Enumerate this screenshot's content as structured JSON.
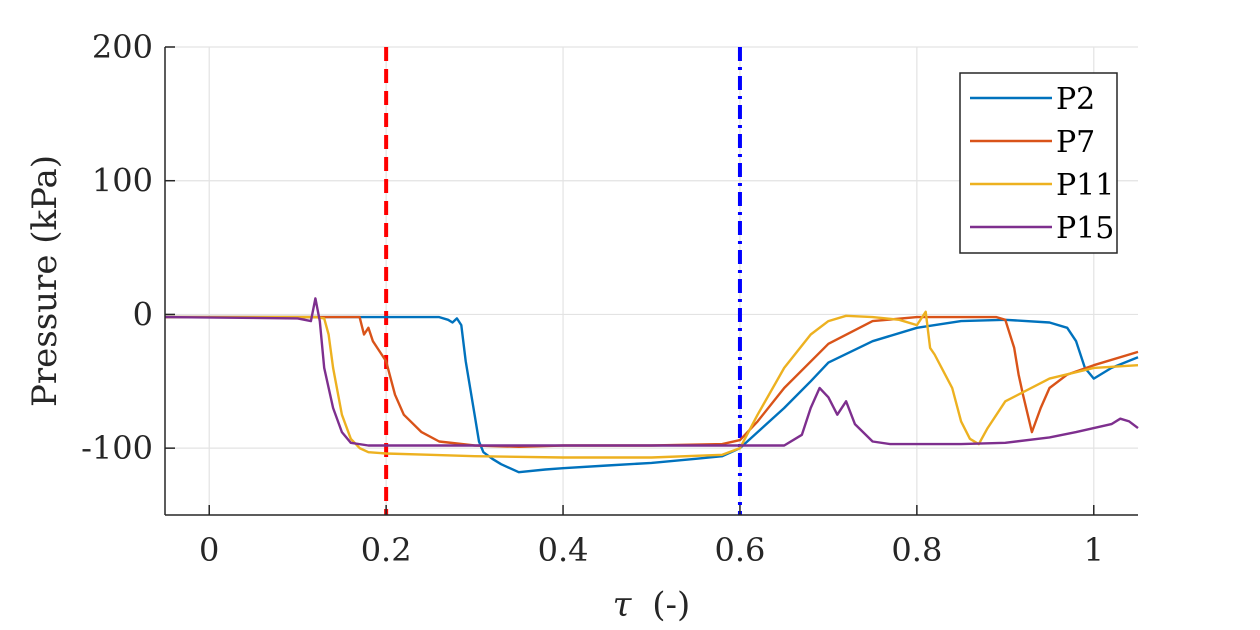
{
  "chart_data": {
    "type": "line",
    "title": "",
    "xlabel_symbol": "τ",
    "xlabel_unit": "(-)",
    "ylabel": "Pressure (kPa)",
    "xlim": [
      -0.05,
      1.05
    ],
    "ylim": [
      -150,
      200
    ],
    "xticks": [
      0,
      0.2,
      0.4,
      0.6,
      0.8,
      1
    ],
    "xtick_labels": [
      "0",
      "0.2",
      "0.4",
      "0.6",
      "0.8",
      "1"
    ],
    "yticks": [
      -100,
      0,
      100,
      200
    ],
    "ytick_labels": [
      "-100",
      "0",
      "100",
      "200"
    ],
    "grid": true,
    "legend_position": "top-right",
    "vlines": [
      {
        "x": 0.2,
        "color": "#ff0000",
        "style": "dashed"
      },
      {
        "x": 0.6,
        "color": "#0000ff",
        "style": "dashdot"
      }
    ],
    "series": [
      {
        "name": "P2",
        "color": "#0072BD",
        "x": [
          -0.05,
          0.26,
          0.27,
          0.275,
          0.28,
          0.285,
          0.29,
          0.3,
          0.305,
          0.31,
          0.32,
          0.33,
          0.35,
          0.38,
          0.4,
          0.45,
          0.5,
          0.55,
          0.58,
          0.6,
          0.62,
          0.65,
          0.68,
          0.7,
          0.75,
          0.8,
          0.85,
          0.9,
          0.95,
          0.97,
          0.98,
          0.99,
          1.0,
          1.02,
          1.05
        ],
        "y": [
          -2,
          -2,
          -4,
          -6,
          -3,
          -8,
          -35,
          -75,
          -95,
          -103,
          -108,
          -112,
          -118,
          -116,
          -115,
          -113,
          -111,
          -108,
          -106,
          -100,
          -88,
          -70,
          -50,
          -36,
          -20,
          -10,
          -5,
          -4,
          -6,
          -10,
          -20,
          -40,
          -48,
          -40,
          -32
        ]
      },
      {
        "name": "P7",
        "color": "#D95319",
        "x": [
          -0.05,
          0.17,
          0.175,
          0.18,
          0.185,
          0.19,
          0.2,
          0.21,
          0.22,
          0.24,
          0.26,
          0.3,
          0.35,
          0.4,
          0.5,
          0.58,
          0.6,
          0.62,
          0.65,
          0.7,
          0.75,
          0.8,
          0.85,
          0.89,
          0.9,
          0.91,
          0.915,
          0.92,
          0.93,
          0.94,
          0.95,
          0.97,
          1.0,
          1.05
        ],
        "y": [
          -2,
          -2,
          -15,
          -10,
          -20,
          -25,
          -35,
          -60,
          -75,
          -88,
          -95,
          -98,
          -99,
          -98,
          -98,
          -97,
          -94,
          -80,
          -55,
          -22,
          -5,
          -2,
          -2,
          -2,
          -4,
          -25,
          -45,
          -60,
          -88,
          -70,
          -55,
          -45,
          -38,
          -28
        ]
      },
      {
        "name": "P11",
        "color": "#EDB120",
        "x": [
          -0.05,
          0.12,
          0.13,
          0.135,
          0.14,
          0.15,
          0.16,
          0.17,
          0.18,
          0.2,
          0.25,
          0.3,
          0.4,
          0.5,
          0.58,
          0.6,
          0.62,
          0.65,
          0.68,
          0.7,
          0.72,
          0.75,
          0.78,
          0.8,
          0.81,
          0.815,
          0.82,
          0.84,
          0.85,
          0.86,
          0.87,
          0.88,
          0.9,
          0.95,
          1.0,
          1.05
        ],
        "y": [
          -2,
          -2,
          -3,
          -15,
          -40,
          -75,
          -93,
          -100,
          -103,
          -104,
          -105,
          -106,
          -107,
          -107,
          -105,
          -100,
          -75,
          -40,
          -15,
          -5,
          -1,
          -2,
          -4,
          -8,
          2,
          -25,
          -30,
          -55,
          -80,
          -93,
          -97,
          -85,
          -65,
          -48,
          -40,
          -38
        ]
      },
      {
        "name": "P15",
        "color": "#7E2F8E",
        "x": [
          -0.05,
          0.1,
          0.115,
          0.12,
          0.125,
          0.13,
          0.14,
          0.15,
          0.16,
          0.18,
          0.2,
          0.3,
          0.4,
          0.5,
          0.6,
          0.65,
          0.67,
          0.68,
          0.69,
          0.7,
          0.71,
          0.72,
          0.73,
          0.75,
          0.77,
          0.8,
          0.85,
          0.9,
          0.95,
          0.98,
          1.0,
          1.02,
          1.03,
          1.04,
          1.05
        ],
        "y": [
          -2,
          -3,
          -5,
          12,
          -5,
          -40,
          -70,
          -88,
          -96,
          -98,
          -98,
          -98,
          -98,
          -98,
          -98,
          -98,
          -90,
          -70,
          -55,
          -62,
          -75,
          -65,
          -82,
          -95,
          -97,
          -97,
          -97,
          -96,
          -92,
          -88,
          -85,
          -82,
          -78,
          -80,
          -85
        ]
      }
    ]
  }
}
